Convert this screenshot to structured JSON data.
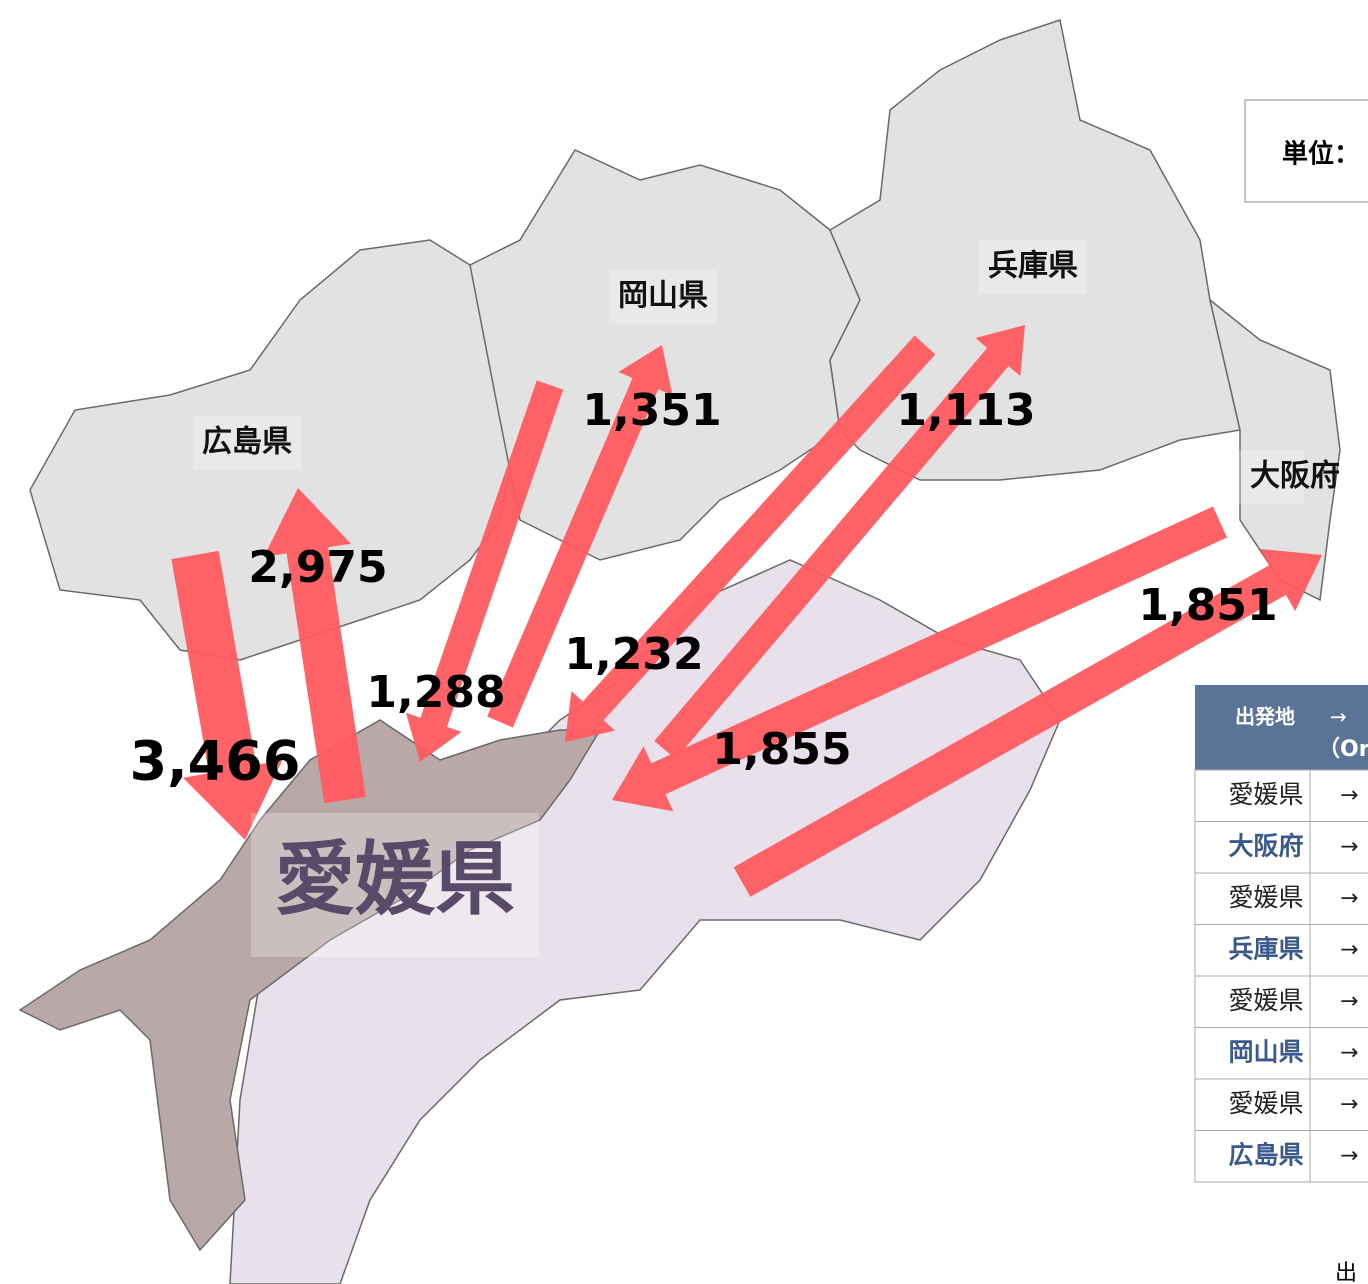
{
  "unit_label": "単位：",
  "regions": [
    "広島県",
    "岡山県",
    "兵庫県",
    "大阪府",
    "愛媛県"
  ],
  "flows": [
    "3,466",
    "2,975",
    "1,288",
    "1,351",
    "1,232",
    "1,113",
    "1,855",
    "1,851"
  ],
  "table": {
    "header": [
      "出発地",
      "→",
      "（Or"
    ],
    "rows": [
      [
        "愛媛県",
        "→"
      ],
      [
        "大阪府",
        "→"
      ],
      [
        "愛媛県",
        "→"
      ],
      [
        "兵庫県",
        "→"
      ],
      [
        "愛媛県",
        "→"
      ],
      [
        "岡山県",
        "→"
      ],
      [
        "愛媛県",
        "→"
      ],
      [
        "広島県",
        "→"
      ]
    ]
  },
  "source": "出"
}
